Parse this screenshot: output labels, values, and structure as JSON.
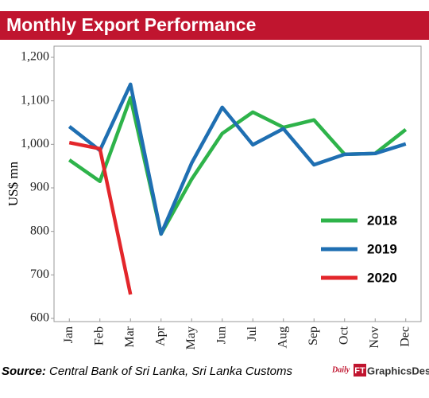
{
  "chart_data": {
    "type": "line",
    "title": "Monthly Export Performance",
    "y_label": "US$ mn",
    "categories": [
      "Jan",
      "Feb",
      "Mar",
      "Apr",
      "May",
      "Jun",
      "Jul",
      "Aug",
      "Sep",
      "Oct",
      "Nov",
      "Dec"
    ],
    "series": [
      {
        "name": "2018",
        "color": "#2eb34a",
        "values": [
          964,
          915,
          1107,
          794,
          920,
          1025,
          1074,
          1039,
          1056,
          977,
          979,
          1034
        ]
      },
      {
        "name": "2019",
        "color": "#1f6fb2",
        "values": [
          1041,
          986,
          1138,
          794,
          957,
          1085,
          999,
          1036,
          953,
          977,
          979,
          1001
        ]
      },
      {
        "name": "2020",
        "color": "#e3262b",
        "values": [
          1004,
          990,
          655,
          null,
          null,
          null,
          null,
          null,
          null,
          null,
          null,
          null
        ]
      }
    ],
    "ylim": [
      600,
      1200
    ],
    "yticks": [
      600,
      700,
      800,
      900,
      {
        "value": 1000,
        "label": "1,000"
      },
      {
        "value": 1100,
        "label": "1,100"
      },
      {
        "value": 1200,
        "label": "1,200"
      }
    ],
    "legend": "lower right"
  },
  "footer": {
    "source_label": "Source:",
    "source_text": "Central Bank of Sri Lanka, Sri Lanka Customs",
    "logo": [
      "Daily",
      "FT",
      "GraphicsDesk"
    ]
  }
}
